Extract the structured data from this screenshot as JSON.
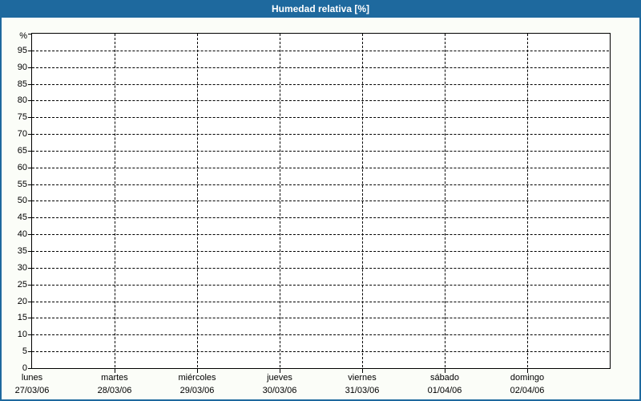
{
  "window": {
    "title": "Humedad relativa [%]"
  },
  "theme": {
    "titlebar_bg": "#1e699e",
    "titlebar_text": "#ffffff",
    "page_border": "#1e699e",
    "page_bg": "#fbfdf8",
    "plot_bg": "#ffffff",
    "axis_color": "#000000",
    "grid_color": "#000000",
    "label_color": "#000000"
  },
  "chart_data": {
    "type": "line",
    "title": "Humedad relativa [%]",
    "y_unit": "%",
    "ylim": [
      0,
      100
    ],
    "ytick_step": 5,
    "yticks": [
      0,
      5,
      10,
      15,
      20,
      25,
      30,
      35,
      40,
      45,
      50,
      55,
      60,
      65,
      70,
      75,
      80,
      85,
      90,
      95
    ],
    "x_intervals": 7,
    "x_categories": [
      {
        "day": "lunes",
        "date": "27/03/06"
      },
      {
        "day": "martes",
        "date": "28/03/06"
      },
      {
        "day": "miércoles",
        "date": "29/03/06"
      },
      {
        "day": "jueves",
        "date": "30/03/06"
      },
      {
        "day": "viernes",
        "date": "31/03/06"
      },
      {
        "day": "sábado",
        "date": "01/04/06"
      },
      {
        "day": "domingo",
        "date": "02/04/06"
      }
    ],
    "series": [],
    "plot_empty": true,
    "grid": {
      "horizontal": "dashed",
      "vertical": "dashed"
    },
    "legend_position": "none"
  }
}
